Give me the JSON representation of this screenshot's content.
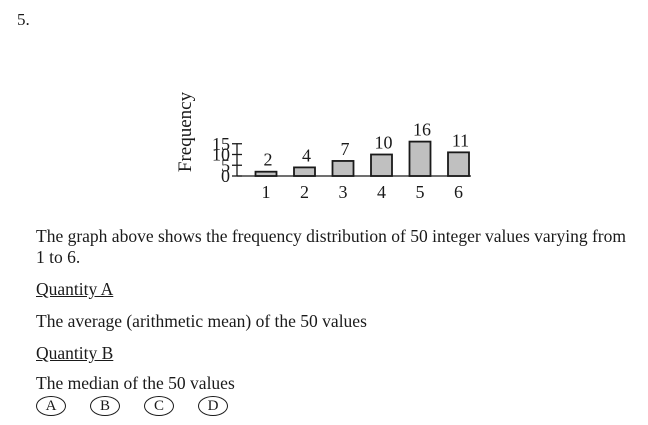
{
  "question_number": "5.",
  "chart_data": {
    "type": "bar",
    "categories": [
      "1",
      "2",
      "3",
      "4",
      "5",
      "6"
    ],
    "values": [
      2,
      4,
      7,
      10,
      16,
      11
    ],
    "data_labels": [
      "2",
      "4",
      "7",
      "10",
      "16",
      "11"
    ],
    "ylabel": "Frequency",
    "xlabel": "",
    "yticks": [
      "0",
      "5",
      "10",
      "15"
    ],
    "ylim": [
      0,
      18
    ],
    "bar_color": "#c0c0c0",
    "grid": false
  },
  "stem": "The graph above shows the frequency distribution of 50 integer values varying from 1 to 6.",
  "quantity_a": {
    "label": "Quantity A",
    "text": "The average (arithmetic mean) of the 50 values"
  },
  "quantity_b": {
    "label": "Quantity B",
    "text": "The median of the 50 values"
  },
  "choices": [
    "A",
    "B",
    "C",
    "D"
  ]
}
